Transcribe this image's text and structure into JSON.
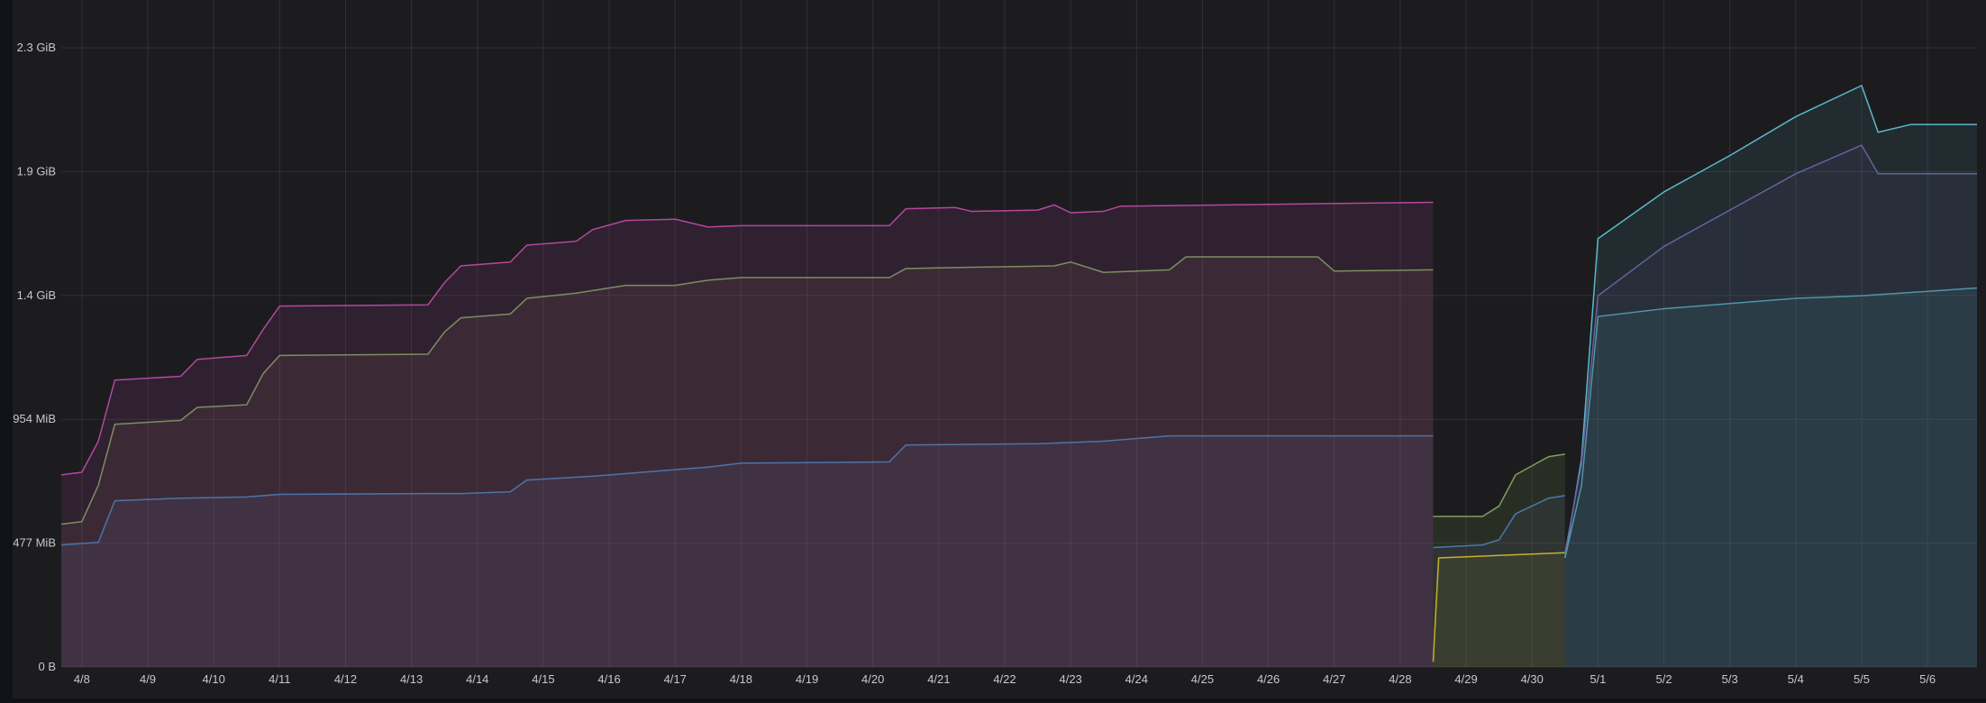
{
  "chart_data": {
    "type": "area",
    "title": "",
    "xlabel": "",
    "ylabel": "",
    "grid": true,
    "legend": "none",
    "y_unit": "MiB",
    "ylim": [
      0,
      2500
    ],
    "y_ticks": [
      {
        "value": 0,
        "label": "0 B"
      },
      {
        "value": 477,
        "label": "477 MiB"
      },
      {
        "value": 954,
        "label": "954 MiB"
      },
      {
        "value": 1431,
        "label": "1.4 GiB"
      },
      {
        "value": 1908,
        "label": "1.9 GiB"
      },
      {
        "value": 2385,
        "label": "2.3 GiB"
      }
    ],
    "xlim": [
      "2024-04-07 16:30",
      "2024-05-06 18:00"
    ],
    "x_ticks": [
      {
        "value": "2024-04-08",
        "label": "4/8"
      },
      {
        "value": "2024-04-09",
        "label": "4/9"
      },
      {
        "value": "2024-04-10",
        "label": "4/10"
      },
      {
        "value": "2024-04-11",
        "label": "4/11"
      },
      {
        "value": "2024-04-12",
        "label": "4/12"
      },
      {
        "value": "2024-04-13",
        "label": "4/13"
      },
      {
        "value": "2024-04-14",
        "label": "4/14"
      },
      {
        "value": "2024-04-15",
        "label": "4/15"
      },
      {
        "value": "2024-04-16",
        "label": "4/16"
      },
      {
        "value": "2024-04-17",
        "label": "4/17"
      },
      {
        "value": "2024-04-18",
        "label": "4/18"
      },
      {
        "value": "2024-04-19",
        "label": "4/19"
      },
      {
        "value": "2024-04-20",
        "label": "4/20"
      },
      {
        "value": "2024-04-21",
        "label": "4/21"
      },
      {
        "value": "2024-04-22",
        "label": "4/22"
      },
      {
        "value": "2024-04-23",
        "label": "4/23"
      },
      {
        "value": "2024-04-24",
        "label": "4/24"
      },
      {
        "value": "2024-04-25",
        "label": "4/25"
      },
      {
        "value": "2024-04-26",
        "label": "4/26"
      },
      {
        "value": "2024-04-27",
        "label": "4/27"
      },
      {
        "value": "2024-04-28",
        "label": "4/28"
      },
      {
        "value": "2024-04-29",
        "label": "4/29"
      },
      {
        "value": "2024-04-30",
        "label": "4/30"
      },
      {
        "value": "2024-05-01",
        "label": "5/1"
      },
      {
        "value": "2024-05-02",
        "label": "5/2"
      },
      {
        "value": "2024-05-03",
        "label": "5/3"
      },
      {
        "value": "2024-05-04",
        "label": "5/4"
      },
      {
        "value": "2024-05-05",
        "label": "5/5"
      },
      {
        "value": "2024-05-06",
        "label": "5/6"
      }
    ],
    "series": [
      {
        "color": "#b5479e",
        "fill": "rgba(181,71,158,0.13)",
        "points": [
          [
            "2024-04-07 16:30",
            740
          ],
          [
            "2024-04-08 00:00",
            750
          ],
          [
            "2024-04-08 06:00",
            870
          ],
          [
            "2024-04-08 12:00",
            1105
          ],
          [
            "2024-04-09 12:00",
            1120
          ],
          [
            "2024-04-09 18:00",
            1185
          ],
          [
            "2024-04-10 12:00",
            1200
          ],
          [
            "2024-04-10 18:00",
            1300
          ],
          [
            "2024-04-11 00:00",
            1390
          ],
          [
            "2024-04-13 06:00",
            1395
          ],
          [
            "2024-04-13 12:00",
            1480
          ],
          [
            "2024-04-13 18:00",
            1545
          ],
          [
            "2024-04-14 12:00",
            1560
          ],
          [
            "2024-04-14 18:00",
            1625
          ],
          [
            "2024-04-15 12:00",
            1640
          ],
          [
            "2024-04-15 18:00",
            1685
          ],
          [
            "2024-04-16 06:00",
            1720
          ],
          [
            "2024-04-17 00:00",
            1725
          ],
          [
            "2024-04-17 12:00",
            1695
          ],
          [
            "2024-04-18 00:00",
            1700
          ],
          [
            "2024-04-20 06:00",
            1700
          ],
          [
            "2024-04-20 12:00",
            1765
          ],
          [
            "2024-04-21 06:00",
            1770
          ],
          [
            "2024-04-21 12:00",
            1755
          ],
          [
            "2024-04-22 12:00",
            1760
          ],
          [
            "2024-04-22 18:00",
            1780
          ],
          [
            "2024-04-23 00:00",
            1750
          ],
          [
            "2024-04-23 12:00",
            1755
          ],
          [
            "2024-04-23 18:00",
            1775
          ],
          [
            "2024-04-28 12:00",
            1790
          ]
        ]
      },
      {
        "color": "#7c8e60",
        "fill": "rgba(150,110,110,0.13)",
        "points": [
          [
            "2024-04-07 16:30",
            550
          ],
          [
            "2024-04-08 00:00",
            560
          ],
          [
            "2024-04-08 06:00",
            700
          ],
          [
            "2024-04-08 12:00",
            935
          ],
          [
            "2024-04-09 12:00",
            950
          ],
          [
            "2024-04-09 18:00",
            1000
          ],
          [
            "2024-04-10 12:00",
            1010
          ],
          [
            "2024-04-10 18:00",
            1130
          ],
          [
            "2024-04-11 00:00",
            1200
          ],
          [
            "2024-04-13 06:00",
            1205
          ],
          [
            "2024-04-13 12:00",
            1290
          ],
          [
            "2024-04-13 18:00",
            1345
          ],
          [
            "2024-04-14 12:00",
            1360
          ],
          [
            "2024-04-14 18:00",
            1420
          ],
          [
            "2024-04-15 12:00",
            1440
          ],
          [
            "2024-04-16 06:00",
            1470
          ],
          [
            "2024-04-17 00:00",
            1470
          ],
          [
            "2024-04-17 12:00",
            1490
          ],
          [
            "2024-04-18 00:00",
            1500
          ],
          [
            "2024-04-20 06:00",
            1500
          ],
          [
            "2024-04-20 12:00",
            1535
          ],
          [
            "2024-04-21 12:00",
            1540
          ],
          [
            "2024-04-22 18:00",
            1545
          ],
          [
            "2024-04-23 00:00",
            1560
          ],
          [
            "2024-04-23 12:00",
            1520
          ],
          [
            "2024-04-24 12:00",
            1530
          ],
          [
            "2024-04-24 18:00",
            1580
          ],
          [
            "2024-04-26 18:00",
            1580
          ],
          [
            "2024-04-27 00:00",
            1525
          ],
          [
            "2024-04-28 12:00",
            1530
          ]
        ]
      },
      {
        "color": "#4e73a8",
        "fill": "rgba(90,90,125,0.18)",
        "points": [
          [
            "2024-04-07 16:30",
            470
          ],
          [
            "2024-04-08 06:00",
            480
          ],
          [
            "2024-04-08 12:00",
            640
          ],
          [
            "2024-04-09 12:00",
            650
          ],
          [
            "2024-04-10 12:00",
            655
          ],
          [
            "2024-04-11 00:00",
            665
          ],
          [
            "2024-04-13 06:00",
            668
          ],
          [
            "2024-04-13 18:00",
            668
          ],
          [
            "2024-04-14 12:00",
            675
          ],
          [
            "2024-04-14 18:00",
            720
          ],
          [
            "2024-04-15 18:00",
            735
          ],
          [
            "2024-04-16 12:00",
            750
          ],
          [
            "2024-04-17 12:00",
            770
          ],
          [
            "2024-04-18 00:00",
            785
          ],
          [
            "2024-04-20 06:00",
            790
          ],
          [
            "2024-04-20 12:00",
            855
          ],
          [
            "2024-04-22 12:00",
            860
          ],
          [
            "2024-04-23 12:00",
            870
          ],
          [
            "2024-04-24 12:00",
            890
          ],
          [
            "2024-04-28 12:00",
            890
          ]
        ]
      },
      {
        "color": "#7fa05a",
        "fill": "rgba(110,140,70,0.16)",
        "points": [
          [
            "2024-04-28 12:00",
            580
          ],
          [
            "2024-04-29 06:00",
            580
          ],
          [
            "2024-04-29 12:00",
            620
          ],
          [
            "2024-04-29 18:00",
            740
          ],
          [
            "2024-04-30 06:00",
            810
          ],
          [
            "2024-04-30 12:00",
            820
          ]
        ]
      },
      {
        "color": "#4a79ad",
        "fill": "rgba(70,100,140,0.12)",
        "points": [
          [
            "2024-04-28 12:00",
            460
          ],
          [
            "2024-04-29 06:00",
            470
          ],
          [
            "2024-04-29 12:00",
            490
          ],
          [
            "2024-04-29 18:00",
            590
          ],
          [
            "2024-04-30 06:00",
            650
          ],
          [
            "2024-04-30 12:00",
            660
          ]
        ]
      },
      {
        "color": "#c8b12a",
        "fill": "rgba(180,160,40,0.10)",
        "points": [
          [
            "2024-04-28 12:00",
            20
          ],
          [
            "2024-04-28 14:00",
            420
          ],
          [
            "2024-04-30 12:00",
            440
          ]
        ]
      },
      {
        "color": "#59b9c8",
        "fill": "rgba(80,160,175,0.12)",
        "points": [
          [
            "2024-04-30 12:00",
            420
          ],
          [
            "2024-04-30 18:00",
            800
          ],
          [
            "2024-05-01 00:00",
            1650
          ],
          [
            "2024-05-02 00:00",
            1830
          ],
          [
            "2024-05-03 00:00",
            1970
          ],
          [
            "2024-05-04 00:00",
            2120
          ],
          [
            "2024-05-05 00:00",
            2240
          ],
          [
            "2024-05-05 06:00",
            2060
          ],
          [
            "2024-05-05 18:00",
            2090
          ],
          [
            "2024-05-06 18:00",
            2090
          ]
        ]
      },
      {
        "color": "#6a5fa0",
        "fill": "rgba(100,90,150,0.10)",
        "points": [
          [
            "2024-04-30 12:00",
            440
          ],
          [
            "2024-04-30 18:00",
            780
          ],
          [
            "2024-05-01 00:00",
            1430
          ],
          [
            "2024-05-02 00:00",
            1620
          ],
          [
            "2024-05-03 00:00",
            1760
          ],
          [
            "2024-05-04 00:00",
            1900
          ],
          [
            "2024-05-05 00:00",
            2010
          ],
          [
            "2024-05-05 06:00",
            1900
          ],
          [
            "2024-05-06 18:00",
            1900
          ]
        ]
      },
      {
        "color": "#4f96a6",
        "fill": "rgba(60,120,135,0.18)",
        "points": [
          [
            "2024-04-30 12:00",
            420
          ],
          [
            "2024-04-30 18:00",
            700
          ],
          [
            "2024-05-01 00:00",
            1350
          ],
          [
            "2024-05-02 00:00",
            1380
          ],
          [
            "2024-05-03 00:00",
            1400
          ],
          [
            "2024-05-04 00:00",
            1420
          ],
          [
            "2024-05-05 00:00",
            1430
          ],
          [
            "2024-05-06 18:00",
            1460
          ]
        ]
      }
    ]
  }
}
